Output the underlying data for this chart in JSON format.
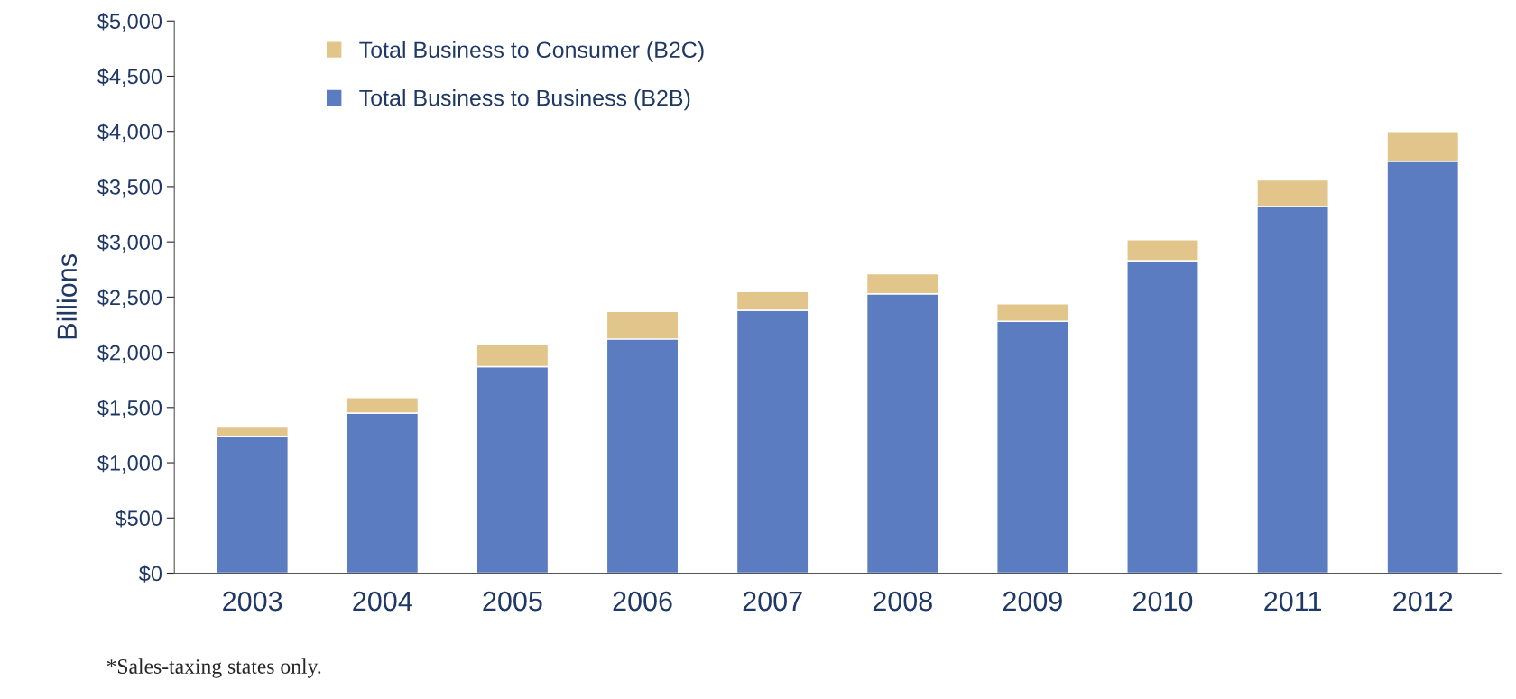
{
  "chart_data": {
    "type": "bar",
    "stacked": true,
    "ylabel": "Billions",
    "categories": [
      "2003",
      "2004",
      "2005",
      "2006",
      "2007",
      "2008",
      "2009",
      "2010",
      "2011",
      "2012"
    ],
    "series": [
      {
        "name": "Total Business to Business (B2B)",
        "color": "#5b7cc0",
        "values": [
          1240,
          1450,
          1870,
          2120,
          2380,
          2530,
          2280,
          2830,
          3320,
          3730
        ]
      },
      {
        "name": "Total Business to Consumer (B2C)",
        "color": "#e2c58a",
        "values": [
          90,
          140,
          200,
          250,
          170,
          180,
          160,
          190,
          240,
          270
        ]
      }
    ],
    "ylim": [
      0,
      5000
    ],
    "yticks": [
      {
        "value": 0,
        "label": "$0"
      },
      {
        "value": 500,
        "label": "$500"
      },
      {
        "value": 1000,
        "label": "$1,000"
      },
      {
        "value": 1500,
        "label": "$1,500"
      },
      {
        "value": 2000,
        "label": "$2,000"
      },
      {
        "value": 2500,
        "label": "$2,500"
      },
      {
        "value": 3000,
        "label": "$3,000"
      },
      {
        "value": 3500,
        "label": "$3,500"
      },
      {
        "value": 4000,
        "label": "$4,000"
      },
      {
        "value": 4500,
        "label": "$4,500"
      },
      {
        "value": 5000,
        "label": "$5,000"
      }
    ],
    "legend": "top left",
    "grid": false,
    "annotations": [
      "*Sales-taxing states only."
    ]
  }
}
